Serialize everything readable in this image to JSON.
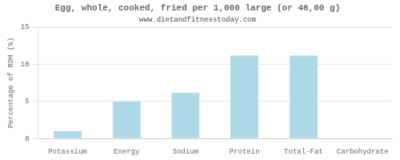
{
  "chart_data": {
    "type": "bar",
    "title": "Egg, whole, cooked, fried per 1,000 large (or 46,00 g)",
    "subtitle": "www.dietandfitnesstoday.com",
    "ylabel": "Percentage of RDH (%)",
    "categories": [
      "Potassium",
      "Energy",
      "Sodium",
      "Protein",
      "Total-Fat",
      "Carbohydrate"
    ],
    "values": [
      1.0,
      5.0,
      6.2,
      11.2,
      11.2,
      0.0
    ],
    "color": "#add8e6",
    "ylim": [
      0,
      15
    ],
    "yticks": [
      0,
      5,
      10,
      15
    ],
    "grid": true
  }
}
